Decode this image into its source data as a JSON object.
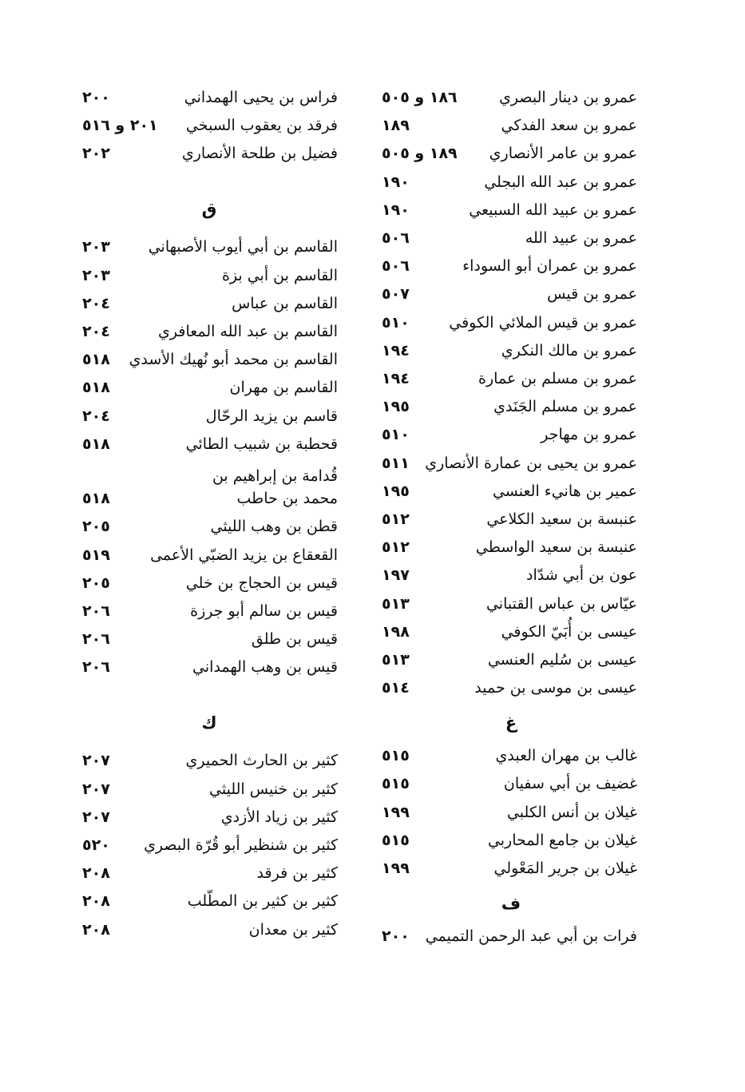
{
  "columns": [
    {
      "entries": [
        {
          "name": "عمرو بن دينار البصري",
          "pages": "١٨٦ و ٥٠٥"
        },
        {
          "name": "عمرو بن سعد الفدكي",
          "pages": "١٨٩"
        },
        {
          "name": "عمرو بن عامر الأنصاري",
          "pages": "١٨٩ و ٥٠٥"
        },
        {
          "name": "عمرو بن عبد الله البجلي",
          "pages": "١٩٠"
        },
        {
          "name": "عمرو بن عبيد الله السبيعي",
          "pages": "١٩٠"
        },
        {
          "name": "عمرو بن عبيد الله",
          "pages": "٥٠٦"
        },
        {
          "name": "عمرو بن عمران أبو السوداء",
          "pages": "٥٠٦"
        },
        {
          "name": "عمرو بن قيس",
          "pages": "٥٠٧"
        },
        {
          "name": "عمرو بن قيس الملائي الكوفي",
          "pages": "٥١٠"
        },
        {
          "name": "عمرو بن مالك النكري",
          "pages": "١٩٤"
        },
        {
          "name": "عمرو بن مسلم بن عمارة",
          "pages": "١٩٤"
        },
        {
          "name": "عمرو بن مسلم الجَنَدي",
          "pages": "١٩٥"
        },
        {
          "name": "عمرو بن مهاجر",
          "pages": "٥١٠"
        },
        {
          "name": "عمرو بن يحيى بن عمارة الأنصاري",
          "pages": "٥١١"
        },
        {
          "name": "عمير بن هانيء العنسي",
          "pages": "١٩٥"
        },
        {
          "name": "عنبسة بن سعيد الكلاعي",
          "pages": "٥١٢"
        },
        {
          "name": "عنبسة بن سعيد الواسطي",
          "pages": "٥١٢"
        },
        {
          "name": "عون بن أبي شدّاد",
          "pages": "١٩٧"
        },
        {
          "name": "عيّاس بن عباس القتباني",
          "pages": "٥١٣"
        },
        {
          "name": "عيسى بن أُبَيّ الكوفي",
          "pages": "١٩٨"
        },
        {
          "name": "عيسى بن سُليم العنسي",
          "pages": "٥١٣"
        },
        {
          "name": "عيسى بن موسى بن حميد",
          "pages": "٥١٤"
        },
        {
          "letter": "غ"
        },
        {
          "name": "غالب بن مهران العبدي",
          "pages": "٥١٥"
        },
        {
          "name": "غضيف بن أبي سفيان",
          "pages": "٥١٥"
        },
        {
          "name": "غيلان بن أنس الكلبي",
          "pages": "١٩٩"
        },
        {
          "name": "غيلان بن جامع المحاربي",
          "pages": "٥١٥"
        },
        {
          "name": "غيلان بن جرير المَعْولي",
          "pages": "١٩٩"
        },
        {
          "letter": "ف"
        },
        {
          "name": "فرات بن أبي عبد الرحمن التميمي",
          "pages": "٢٠٠"
        }
      ]
    },
    {
      "entries": [
        {
          "name": "فراس بن يحيى الهمداني",
          "pages": "٢٠٠"
        },
        {
          "name": "فرقد بن يعقوب السبخي",
          "pages": "٢٠١ و ٥١٦"
        },
        {
          "name": "فضيل بن طلحة الأنصاري",
          "pages": "٢٠٢"
        },
        {
          "letter": "ق"
        },
        {
          "name": "القاسم بن أبي أيوب الأصبهاني",
          "pages": "٢٠٣"
        },
        {
          "name": "القاسم بن أبي بزة",
          "pages": "٢٠٣"
        },
        {
          "name": "القاسم بن عباس",
          "pages": "٢٠٤"
        },
        {
          "name": "القاسم بن عبد الله المعافري",
          "pages": "٢٠٤"
        },
        {
          "name": "القاسم بن محمد أبو نُهيك الأسدي",
          "pages": "٥١٨"
        },
        {
          "name": "القاسم بن مهران",
          "pages": "٥١٨"
        },
        {
          "name": "قاسم بن يزيد الرحّال",
          "pages": "٢٠٤"
        },
        {
          "name": "قحطبة بن شبيب الطائي",
          "pages": "٥١٨"
        },
        {
          "name": "قُدامة بن إبراهيم بن",
          "continuation": "محمد بن حاطب",
          "pages": "٥١٨"
        },
        {
          "name": "قطن بن وهب الليثي",
          "pages": "٢٠٥"
        },
        {
          "name": "القعقاع بن يزيد الضبّي الأعمى",
          "pages": "٥١٩"
        },
        {
          "name": "قيس بن الحجاج بن خلي",
          "pages": "٢٠٥"
        },
        {
          "name": "قيس بن سالم أبو جرزة",
          "pages": "٢٠٦"
        },
        {
          "name": "قيس بن طلق",
          "pages": "٢٠٦"
        },
        {
          "name": "قيس بن وهب الهمداني",
          "pages": "٢٠٦"
        },
        {
          "letter": "ك"
        },
        {
          "name": "كثير بن الحارث الحميري",
          "pages": "٢٠٧"
        },
        {
          "name": "كثير بن خنيس الليثي",
          "pages": "٢٠٧"
        },
        {
          "name": "كثير بن زياد الأزدي",
          "pages": "٢٠٧"
        },
        {
          "name": "كثير بن شنظير أبو قُرّة البصري",
          "pages": "٥٢٠"
        },
        {
          "name": "كثير بن فرقد",
          "pages": "٢٠٨"
        },
        {
          "name": "كثير بن كثير بن المطّلب",
          "pages": "٢٠٨"
        },
        {
          "name": "كثير بن معدان",
          "pages": "٢٠٨"
        }
      ]
    }
  ]
}
